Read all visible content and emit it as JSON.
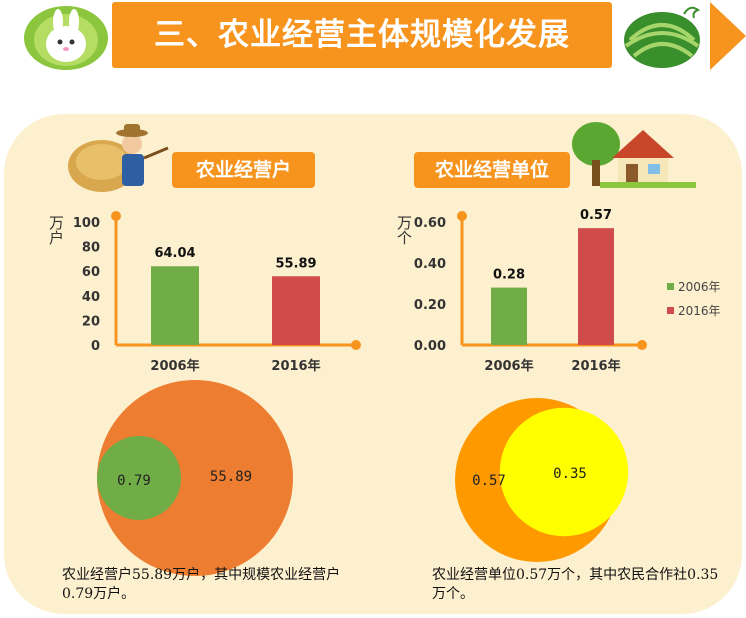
{
  "header": {
    "title": "三、农业经营主体规模化发展",
    "accent": "#f7941d"
  },
  "left_section": {
    "label": "农业经营户",
    "ylabel": "万户",
    "caption": "农业经营户55.89万户，其中规模农业经营户0.79万户。"
  },
  "right_section": {
    "label": "农业经营单位",
    "ylabel": "万个",
    "caption": "农业经营单位0.57万个，其中农民合作社0.35万个。"
  },
  "chart_data": [
    {
      "type": "bar",
      "categories": [
        "2006年",
        "2016年"
      ],
      "values": [
        64.04,
        55.89
      ],
      "value_labels": [
        "64.04",
        "55.89"
      ],
      "colors": [
        "#70ad47",
        "#d04b4b"
      ],
      "ylabel": "万户",
      "ylim": [
        0,
        100
      ],
      "yticks": [
        "0",
        "20",
        "40",
        "60",
        "80",
        "100"
      ],
      "grid": false
    },
    {
      "type": "bar",
      "categories": [
        "2006年",
        "2016年"
      ],
      "values": [
        0.28,
        0.57
      ],
      "value_labels": [
        "0.28",
        "0.57"
      ],
      "colors": [
        "#70ad47",
        "#d04b4b"
      ],
      "ylabel": "万个",
      "ylim": [
        0,
        0.6
      ],
      "yticks": [
        "0.00",
        "0.20",
        "0.40",
        "0.60"
      ],
      "grid": false,
      "legend": {
        "position": "right",
        "entries": [
          {
            "label": "2006年",
            "color": "#70ad47"
          },
          {
            "label": "2016年",
            "color": "#d04b4b"
          }
        ]
      }
    },
    {
      "type": "nested-circle",
      "outer": {
        "value": 55.89,
        "label": "55.89",
        "color": "#ed7d31"
      },
      "inner": {
        "value": 0.79,
        "label": "0.79",
        "color": "#70ad47"
      }
    },
    {
      "type": "nested-circle",
      "outer": {
        "value": 0.57,
        "label": "0.57",
        "color": "#ff9900"
      },
      "inner": {
        "value": 0.35,
        "label": "0.35",
        "color": "#ffff00"
      }
    }
  ]
}
